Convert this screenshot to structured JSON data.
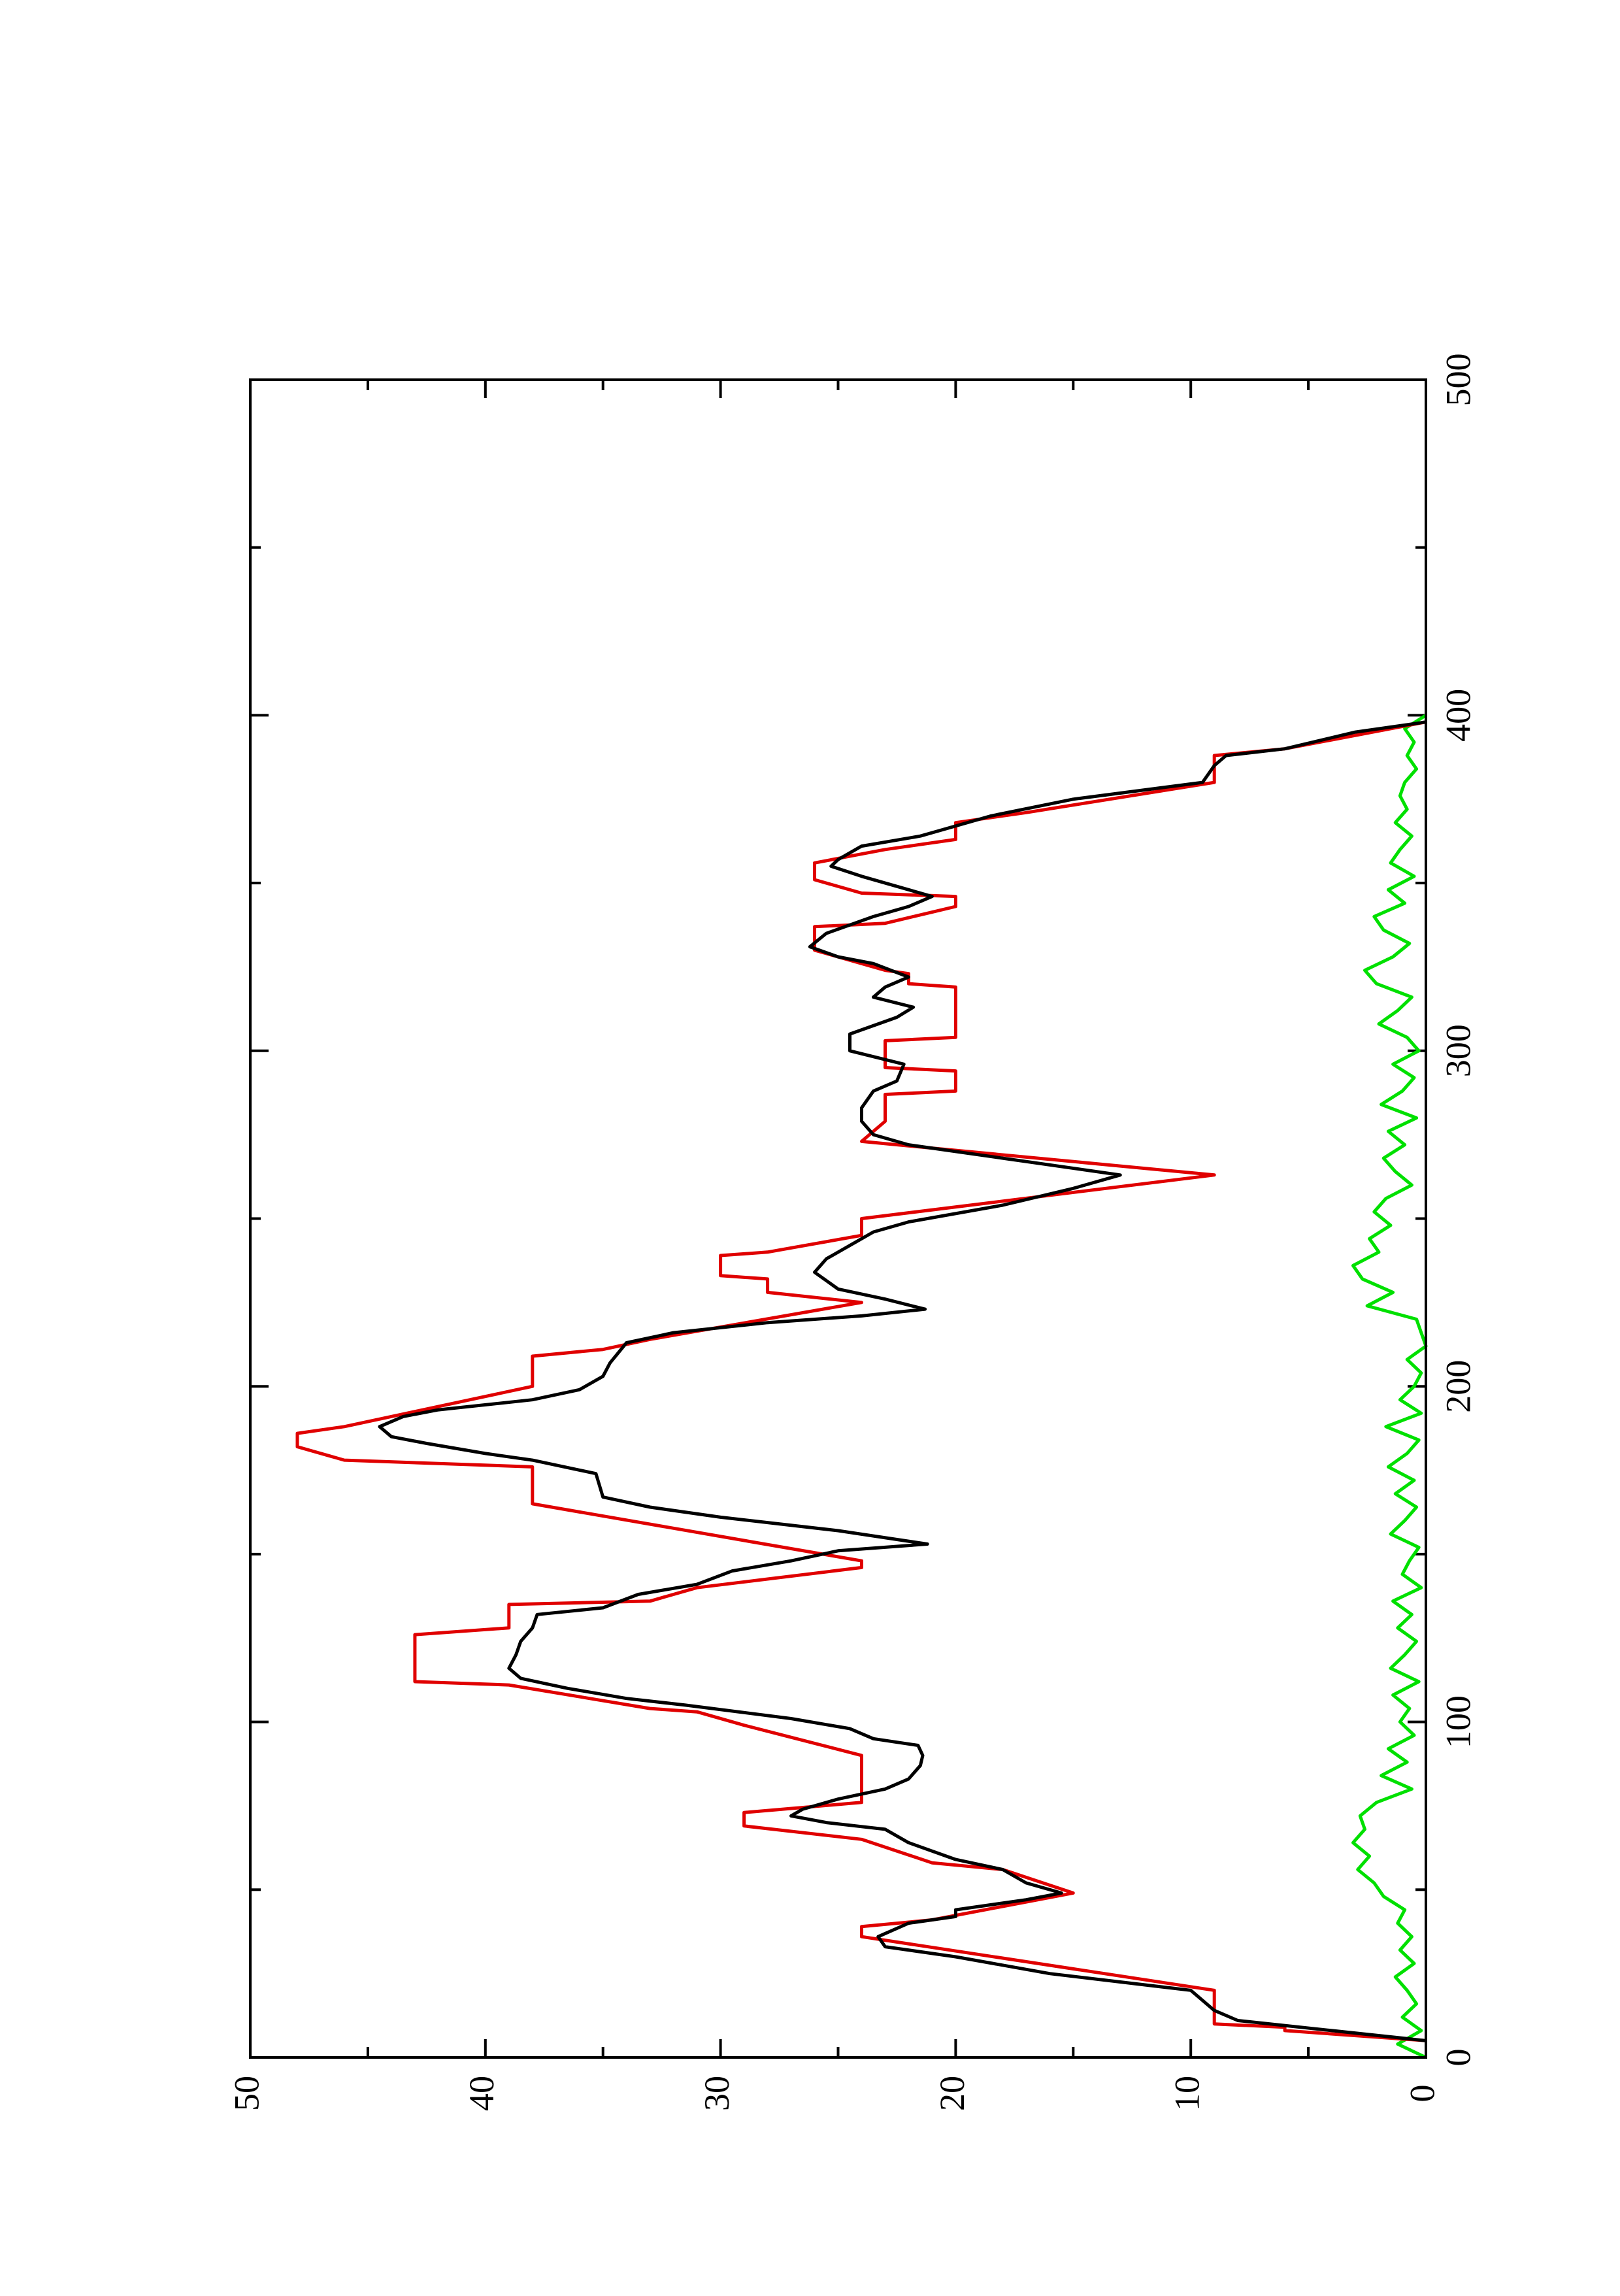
{
  "chart_data": {
    "type": "line",
    "xlim": [
      0,
      500
    ],
    "ylim": [
      0,
      50
    ],
    "xticks": [
      0,
      100,
      200,
      300,
      400,
      500
    ],
    "yticks": [
      0,
      10,
      20,
      30,
      40,
      50
    ],
    "xminorticks": [
      50,
      150,
      250,
      350,
      450
    ],
    "yminorticks": [
      5,
      15,
      25,
      35,
      45
    ],
    "series": [
      {
        "color": "#000000",
        "x": [
          5,
          8,
          11,
          14,
          20,
          25,
          30,
          33,
          36,
          40,
          42,
          44,
          47,
          49,
          52,
          56,
          59,
          64,
          68,
          70,
          72,
          74,
          77,
          80,
          83,
          87,
          90,
          93,
          95,
          98,
          101,
          105,
          107,
          110,
          113,
          116,
          120,
          124,
          128,
          132,
          134,
          138,
          141,
          145,
          148,
          151,
          153,
          157,
          161,
          164,
          167,
          174,
          178,
          180,
          183,
          185,
          188,
          191,
          193,
          196,
          199,
          203,
          207,
          213,
          216,
          219,
          221,
          223,
          226,
          229,
          234,
          238,
          242,
          246,
          249,
          254,
          259,
          263,
          268,
          272,
          275,
          279,
          283,
          288,
          291,
          296,
          300,
          305,
          310,
          313,
          316,
          319,
          322,
          326,
          328,
          331,
          335,
          340,
          343,
          346,
          349,
          352,
          355,
          357,
          361,
          364,
          370,
          375,
          380,
          385,
          388,
          390,
          395,
          398
        ],
        "values": [
          0,
          4,
          8,
          9,
          10,
          16,
          20,
          23,
          23.3,
          22,
          20,
          20,
          17,
          15.5,
          17,
          18,
          20,
          22,
          23,
          25.5,
          27,
          26.5,
          25,
          23,
          22,
          21.5,
          21.4,
          21.6,
          23.5,
          24.5,
          27,
          31.5,
          34,
          36.5,
          38.5,
          39,
          38.7,
          38.5,
          38,
          37.8,
          35,
          33.5,
          31,
          29.5,
          27,
          25,
          21.2,
          25,
          30,
          33,
          35,
          35.3,
          38,
          40,
          42.5,
          44,
          44.5,
          43.5,
          42,
          38,
          36,
          35,
          34.7,
          34,
          32,
          28,
          24,
          21.3,
          23,
          25,
          26,
          25.5,
          24.5,
          23.5,
          22,
          18,
          15,
          13,
          18,
          22,
          23.5,
          24,
          24,
          23.5,
          22.5,
          22.2,
          24.5,
          24.5,
          22.5,
          21.8,
          23.5,
          23,
          22,
          23.5,
          25,
          26.2,
          25.5,
          23.5,
          22,
          21,
          22.5,
          24,
          25.3,
          25,
          24,
          21.5,
          18.5,
          15,
          9.5,
          9,
          8.5,
          6,
          3,
          0
        ]
      },
      {
        "color": "#e00000",
        "x": [
          5,
          8,
          9,
          10,
          20,
          36,
          39,
          41,
          49,
          56,
          58,
          65,
          69,
          73,
          76,
          90,
          99,
          103,
          104,
          111,
          112,
          126,
          128,
          135,
          136,
          140,
          146,
          148,
          165,
          176,
          178,
          182,
          186,
          188,
          200,
          209,
          211,
          214,
          225,
          228,
          232,
          233,
          239,
          240,
          245,
          250,
          263,
          273,
          279,
          287,
          288,
          294,
          295,
          303,
          304,
          319,
          320,
          323,
          324,
          330,
          337,
          338,
          343,
          346,
          347,
          351,
          356,
          360,
          363,
          368,
          371,
          380,
          388,
          390,
          398
        ],
        "values": [
          0,
          6,
          6,
          9,
          9,
          24,
          24,
          21,
          15,
          18,
          21,
          24,
          29,
          29,
          24,
          24,
          29,
          31,
          33,
          39,
          43,
          43,
          39,
          39,
          33,
          31,
          24,
          24,
          38,
          38,
          46,
          48,
          48,
          46,
          38,
          38,
          35,
          33,
          24,
          28,
          28,
          30,
          30,
          28,
          24,
          24,
          9,
          24,
          23,
          23,
          20,
          20,
          23,
          23,
          20,
          20,
          22,
          22,
          23,
          26,
          26,
          23,
          20,
          20,
          24,
          26,
          26,
          23,
          20,
          20,
          17,
          9,
          9,
          6,
          0
        ]
      },
      {
        "color": "#00e000",
        "x": [
          0,
          4,
          8,
          12,
          16,
          20,
          24,
          28,
          32,
          36,
          40,
          44,
          48,
          52,
          56,
          60,
          64,
          68,
          72,
          76,
          80,
          84,
          88,
          92,
          96,
          100,
          104,
          108,
          112,
          116,
          120,
          124,
          128,
          132,
          136,
          140,
          144,
          148,
          152,
          156,
          160,
          164,
          168,
          172,
          176,
          180,
          184,
          188,
          192,
          196,
          200,
          204,
          208,
          212,
          216,
          220,
          224,
          228,
          232,
          236,
          240,
          244,
          248,
          252,
          256,
          260,
          264,
          268,
          272,
          276,
          280,
          284,
          288,
          292,
          296,
          300,
          304,
          308,
          312,
          316,
          320,
          324,
          328,
          332,
          336,
          340,
          344,
          348,
          352,
          356,
          360,
          364,
          368,
          372,
          376,
          380,
          384,
          388,
          392,
          396,
          400
        ],
        "values": [
          0,
          1.2,
          0.2,
          1,
          0.4,
          0.8,
          1.3,
          0.5,
          1.1,
          0.6,
          1.2,
          0.9,
          1.8,
          2.2,
          2.9,
          2.4,
          3.1,
          2.6,
          2.8,
          2.1,
          0.6,
          1.9,
          0.8,
          1.6,
          0.5,
          1.1,
          0.7,
          1.4,
          0.3,
          1.5,
          0.9,
          0.4,
          1.2,
          0.6,
          1.4,
          0.2,
          1,
          0.7,
          0.3,
          1.5,
          0.9,
          0.4,
          1.3,
          0.5,
          1.6,
          0.8,
          0.3,
          1.7,
          0.2,
          1.1,
          0.5,
          0.2,
          0.8,
          0,
          0.2,
          0.4,
          2.5,
          1.4,
          2.7,
          3.1,
          2,
          2.4,
          1.5,
          2.2,
          1.7,
          0.6,
          1.3,
          1.8,
          0.9,
          1.6,
          0.4,
          1.9,
          1,
          0.5,
          1.4,
          0.3,
          0.8,
          2,
          1.2,
          0.6,
          2.1,
          2.6,
          1.4,
          0.7,
          1.8,
          2.2,
          0.9,
          1.6,
          0.5,
          1.5,
          1.1,
          0.6,
          1.3,
          0.8,
          1.1,
          0.9,
          0.4,
          0.8,
          0.5,
          0.9,
          0
        ]
      }
    ]
  }
}
